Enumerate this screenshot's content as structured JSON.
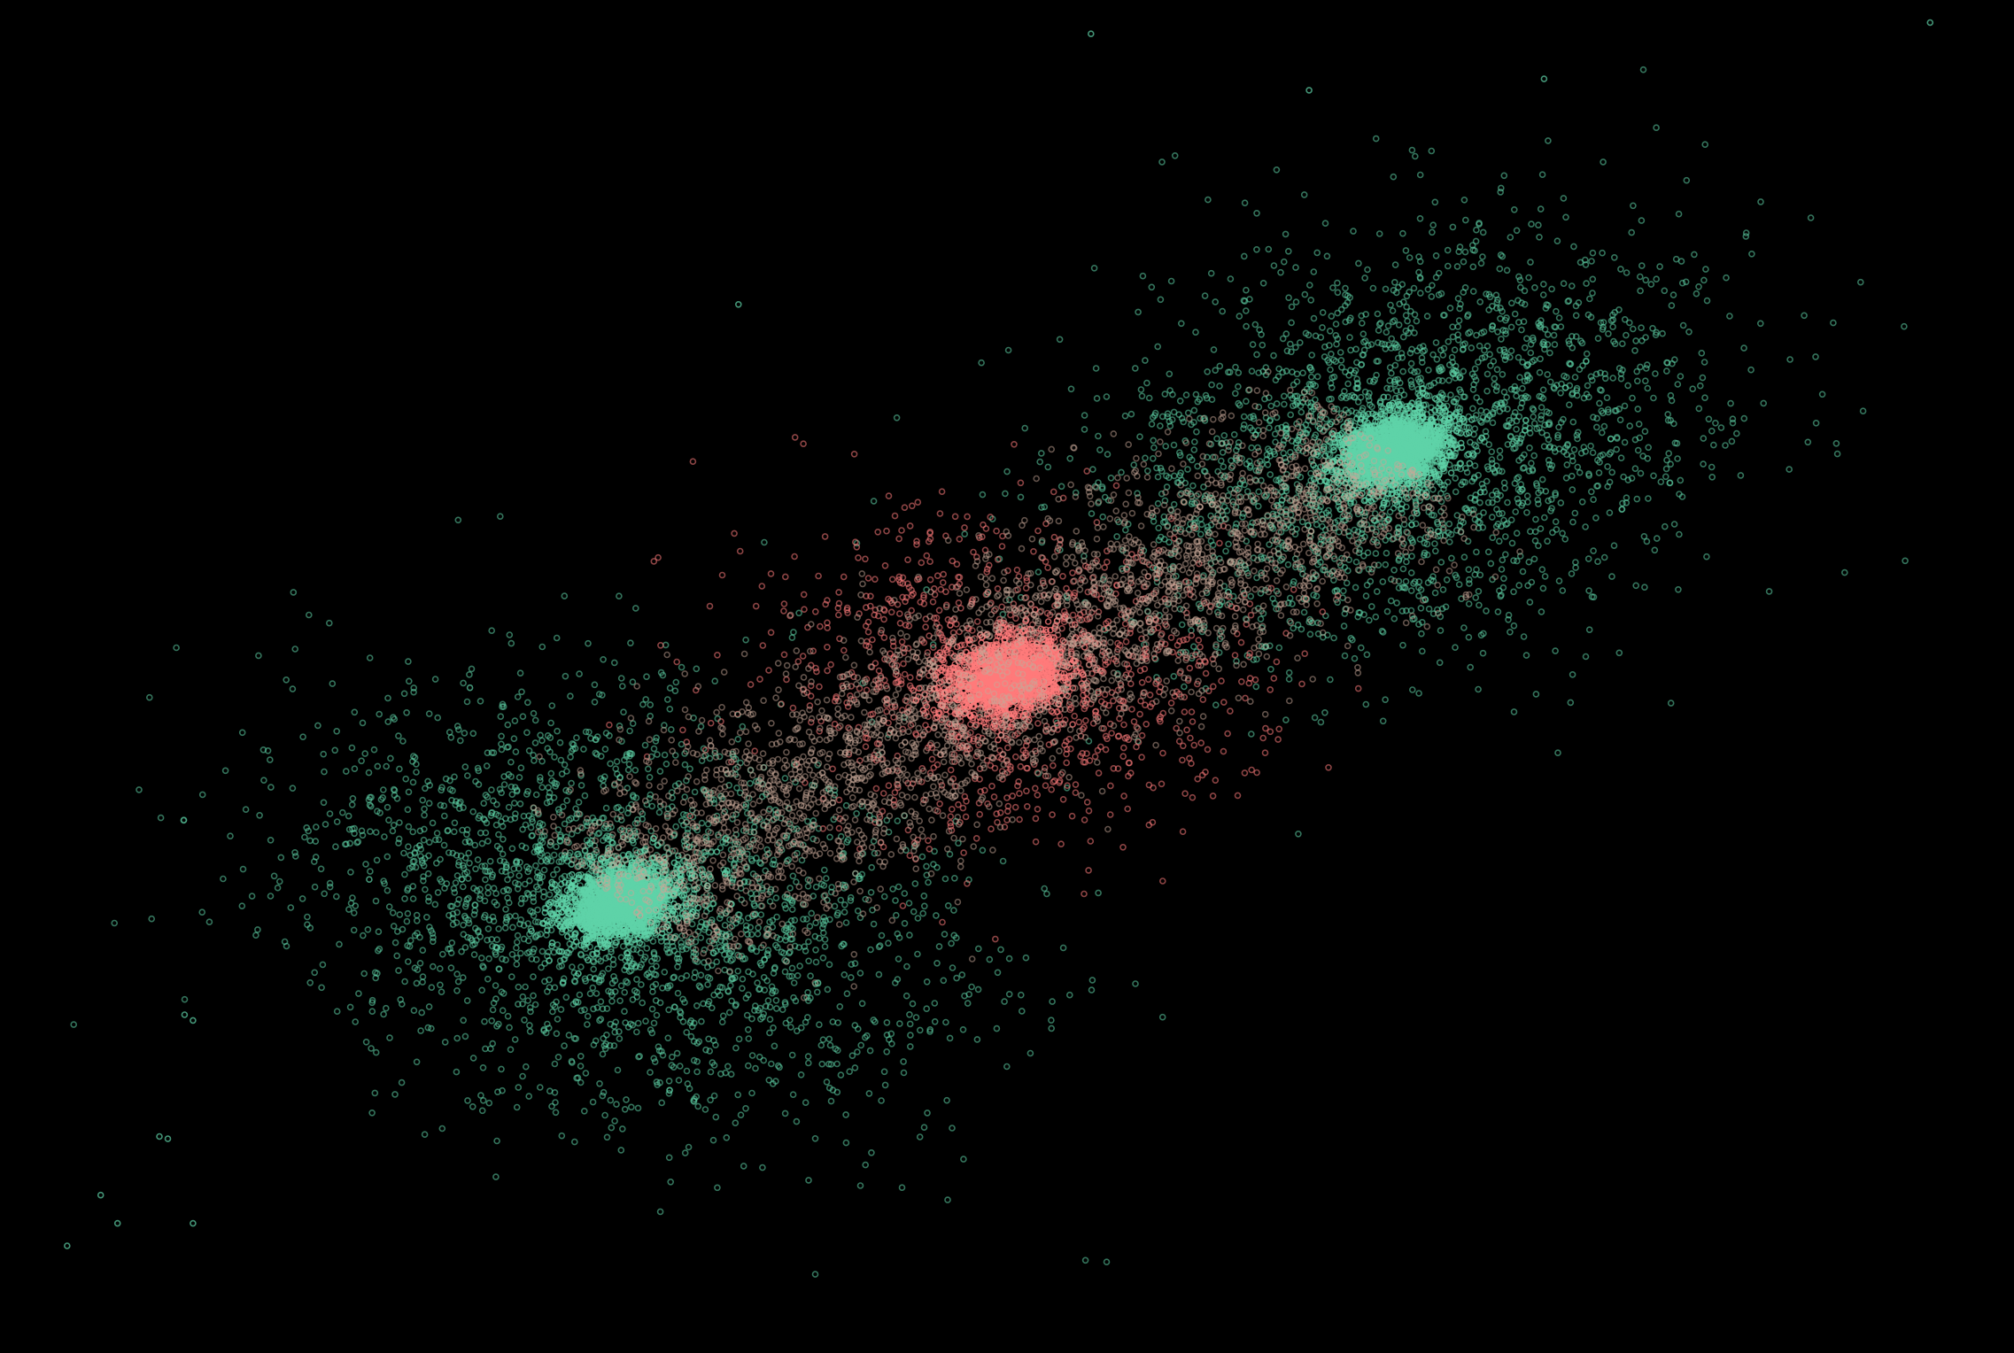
{
  "chart_data": {
    "type": "scatter",
    "title": "",
    "xlabel": "",
    "ylabel": "",
    "grid": false,
    "legend": "none",
    "axes_visible": false,
    "xlim": [
      -6,
      6
    ],
    "ylim": [
      -6,
      6
    ],
    "marker": "hollow-circle",
    "colors": {
      "background": "#000000",
      "cluster_teal": "#5fd3a8",
      "cluster_pink": "#ff7b7b",
      "bridge_tan": "#c8a898"
    },
    "series": [
      {
        "color": "#5fd3a8",
        "clusters": [
          {
            "center": [
              -2.3,
              -2.0
            ],
            "core_spread": 0.14,
            "halo_spread": [
              0.55,
              0.75
            ],
            "core_points": 1800,
            "halo_points": 2400
          },
          {
            "center": [
              2.3,
              2.0
            ],
            "core_spread": 0.14,
            "halo_spread": [
              0.75,
              0.55
            ],
            "core_points": 1800,
            "halo_points": 2400
          }
        ]
      },
      {
        "color": "#ff7b7b",
        "clusters": [
          {
            "center": [
              0.0,
              0.0
            ],
            "core_spread": 0.15,
            "halo_spread": [
              0.5,
              0.5
            ],
            "core_points": 1600,
            "halo_points": 1200
          }
        ]
      },
      {
        "color": "#c8a898",
        "bridges": [
          {
            "from": [
              -2.3,
              -2.0
            ],
            "to": [
              0.0,
              0.0
            ],
            "width": 0.45,
            "points": 1500
          },
          {
            "from": [
              0.0,
              0.0
            ],
            "to": [
              2.3,
              2.0
            ],
            "width": 0.45,
            "points": 1500
          }
        ]
      }
    ],
    "outliers": [
      [
        -5.0,
        -4.1
      ],
      [
        -5.05,
        -4.08
      ],
      [
        -5.4,
        -4.6
      ],
      [
        -5.3,
        -4.85
      ],
      [
        -4.85,
        -4.85
      ],
      [
        -4.9,
        -3.0
      ],
      [
        -4.85,
        -3.05
      ],
      [
        -3.5,
        -1.5
      ],
      [
        -3.8,
        -1.8
      ],
      [
        -3.2,
        -0.1
      ],
      [
        0.5,
        5.7
      ],
      [
        1.8,
        5.2
      ],
      [
        3.2,
        5.3
      ],
      [
        5.5,
        5.8
      ],
      [
        -1.6,
        3.3
      ],
      [
        -5.6,
        -5.05
      ]
    ]
  }
}
